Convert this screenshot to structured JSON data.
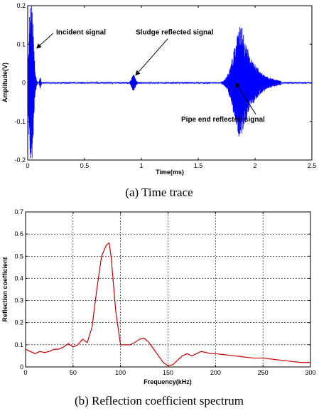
{
  "chart_data": [
    {
      "type": "line",
      "caption": "(a)  Time  trace",
      "xlabel": "Time(ms)",
      "ylabel": "Amplitude(V)",
      "xlim": [
        0,
        2.5
      ],
      "ylim": [
        -0.2,
        0.2
      ],
      "xticks": [
        0,
        0.5,
        1,
        1.5,
        2,
        2.5
      ],
      "yticks": [
        -0.2,
        -0.1,
        0,
        0.1,
        0.2
      ],
      "xtick_labels": [
        "0",
        "0.5",
        "1",
        "1.5",
        "2",
        "2.5"
      ],
      "ytick_labels": [
        "-0.2",
        "-0.1",
        "0",
        "0.1",
        "0.2"
      ],
      "grid": false,
      "line_color": "#0000ff",
      "annotations": [
        {
          "text": "Incident signal",
          "x": 0.25,
          "y": 0.125,
          "arrow_to": [
            0.08,
            0.09
          ]
        },
        {
          "text": "Sludge reflected signal",
          "x": 0.95,
          "y": 0.125,
          "arrow_to": [
            0.95,
            0.02
          ]
        },
        {
          "text": "Pipe end reflected signal",
          "x": 1.35,
          "y": -0.1,
          "arrow_to": [
            1.83,
            0.0
          ]
        }
      ],
      "events": [
        {
          "center": 0.03,
          "amplitude": 0.22,
          "duration": 0.06
        },
        {
          "center": 0.11,
          "amplitude": 0.015,
          "duration": 0.02
        },
        {
          "center": 0.93,
          "amplitude": 0.022,
          "duration": 0.05
        },
        {
          "center": 1.88,
          "amplitude": 0.15,
          "duration": 0.35
        }
      ]
    },
    {
      "type": "line",
      "caption": "(b)  Reflection  coefficient  spectrum",
      "xlabel": "Frequency(kHz)",
      "ylabel": "Reflection coefficient",
      "xlim": [
        0,
        300
      ],
      "ylim": [
        0,
        0.7
      ],
      "xticks": [
        0,
        50,
        100,
        150,
        200,
        250,
        300
      ],
      "yticks": [
        0,
        0.1,
        0.2,
        0.3,
        0.4,
        0.5,
        0.6,
        0.7
      ],
      "xtick_labels": [
        "0",
        "50",
        "100",
        "150",
        "200",
        "250",
        "300"
      ],
      "ytick_labels": [
        "0",
        "0.1",
        "0.2",
        "0.3",
        "0.4",
        "0.5",
        "0.6",
        "0.7"
      ],
      "grid": true,
      "line_color": "#cc0000",
      "x": [
        0,
        5,
        10,
        15,
        20,
        25,
        30,
        35,
        40,
        45,
        50,
        55,
        60,
        65,
        70,
        75,
        80,
        85,
        88,
        90,
        95,
        100,
        105,
        110,
        115,
        120,
        125,
        130,
        135,
        140,
        145,
        150,
        155,
        160,
        165,
        170,
        175,
        180,
        185,
        190,
        195,
        200,
        210,
        220,
        230,
        240,
        250,
        260,
        270,
        280,
        290,
        300
      ],
      "y": [
        0.08,
        0.07,
        0.06,
        0.07,
        0.065,
        0.07,
        0.08,
        0.08,
        0.09,
        0.105,
        0.09,
        0.1,
        0.125,
        0.11,
        0.18,
        0.35,
        0.5,
        0.55,
        0.56,
        0.5,
        0.25,
        0.1,
        0.1,
        0.1,
        0.11,
        0.125,
        0.13,
        0.11,
        0.08,
        0.05,
        0.02,
        0.005,
        0.01,
        0.03,
        0.05,
        0.06,
        0.05,
        0.06,
        0.07,
        0.065,
        0.06,
        0.06,
        0.055,
        0.05,
        0.045,
        0.04,
        0.04,
        0.035,
        0.03,
        0.025,
        0.02,
        0.02
      ]
    }
  ]
}
